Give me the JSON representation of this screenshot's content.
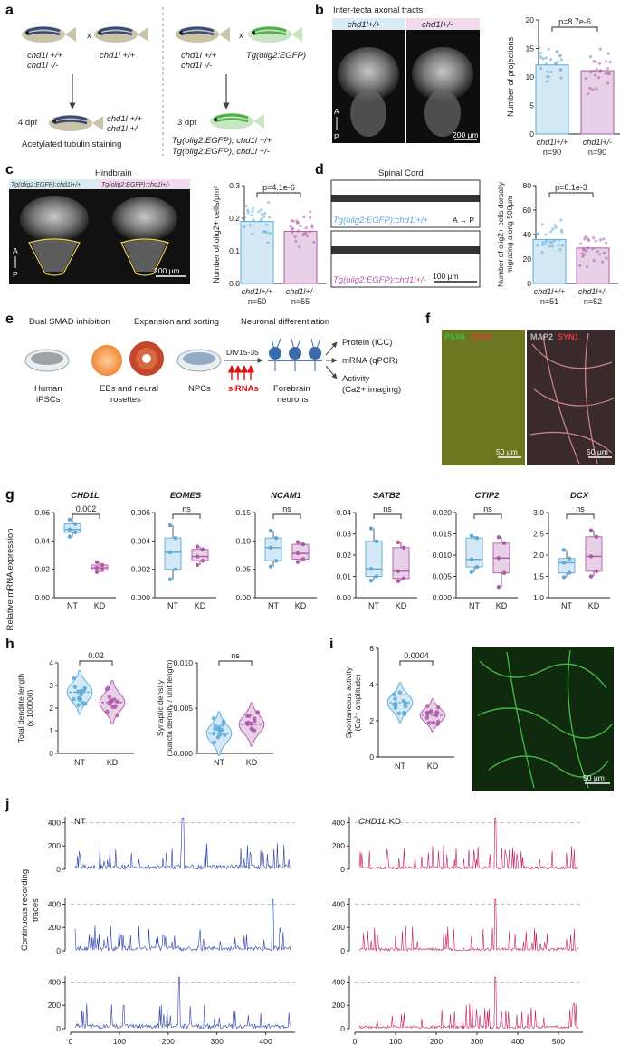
{
  "panels": {
    "a": {
      "letter": "a",
      "left": {
        "parent1_line1": "chd1l +/+",
        "parent1_line2": "chd1l -/-",
        "cross": "x",
        "parent2": "chd1l +/+",
        "stage": "4 dpf",
        "offspring_line1": "chd1l +/+",
        "offspring_line2": "chd1l +/-",
        "caption": "Acetylated tubulin staining"
      },
      "right": {
        "parent1_line1": "chd1l +/+",
        "parent1_line2": "chd1l -/-",
        "cross": "x",
        "parent2": "Tg(olig2:EGFP)",
        "stage": "3 dpf",
        "offspring_line1": "Tg(olig2:EGFP), chd1l +/+",
        "offspring_line2": "Tg(olig2:EGFP), chd1l +/-"
      }
    },
    "b": {
      "letter": "b",
      "title": "Inter-tecta axonal tracts",
      "img_label1": "chd1l+/+",
      "img_label2": "chd1l+/-",
      "orient_a": "A",
      "orient_p": "P",
      "scale": "200 μm"
    },
    "c": {
      "letter": "c",
      "title": "Hindbrain",
      "img_label1": "Tg(olig2:EGFP);chd1l+/+",
      "img_label2": "Tg(olig2:EGFP);chd1l+/-",
      "orient_a": "A",
      "orient_p": "P",
      "scale": "200 μm"
    },
    "d": {
      "letter": "d",
      "title": "Spinal Cord",
      "img_label1": "Tg(olig2:EGFP);chd1l+/+",
      "img_label2": "Tg(olig2:EGFP);chd1l+/-",
      "orient": "A → P",
      "scale": "100 μm"
    },
    "e": {
      "letter": "e",
      "step1": "Dual SMAD inhibition",
      "step2": "Expansion and sorting",
      "step3": "Neuronal differentiation",
      "lab_ipsc1": "Human",
      "lab_ipsc2": "iPSCs",
      "lab_eb1": "EBs and neural",
      "lab_eb2": "rosettes",
      "lab_npc": "NPCs",
      "div": "DIV15-35",
      "sirna": "siRNAs",
      "lab_neuron1": "Forebrain",
      "lab_neuron2": "neurons",
      "out1": "Protein (ICC)",
      "out2": "mRNA (qPCR)",
      "out3a": "Activity",
      "out3b": "(Ca2+ imaging)"
    },
    "f": {
      "letter": "f",
      "m1a": "PAX6",
      "m1b": "SOX1",
      "m2a": "MAP2",
      "m2b": "SYN1",
      "scale1": "50 μm",
      "scale2": "50 μm"
    },
    "g": {
      "letter": "g",
      "ylabel": "Relative mRNA expression"
    },
    "h": {
      "letter": "h"
    },
    "i": {
      "letter": "i",
      "scale": "50 μm"
    },
    "j": {
      "letter": "j",
      "ylabel1": "Continuous recording",
      "ylabel2": "traces"
    }
  },
  "colors": {
    "nt": "#5aa9d6",
    "nt_fill": "#d4e8f5",
    "kd": "#b05aa8",
    "kd_fill": "#e6d1e6",
    "trace_nt": "#2b3fa8",
    "trace_kd": "#c2185b",
    "green": "#2db34a"
  },
  "chart_data": [
    {
      "id": "b",
      "type": "bar",
      "categories": [
        "chd1l+/+",
        "chd1l+/-"
      ],
      "n_labels": [
        "n=90",
        "n=90"
      ],
      "values": [
        12.1,
        11.1
      ],
      "ylabel": "Number of projections",
      "ylim": [
        0,
        20
      ],
      "yticks": [
        "0",
        "5",
        "10",
        "15",
        "20"
      ],
      "pvalue": "p=8.7e-6"
    },
    {
      "id": "c",
      "type": "bar",
      "categories": [
        "chd1l+/+",
        "chd1l+/-"
      ],
      "n_labels": [
        "n=50",
        "n=55"
      ],
      "values": [
        0.19,
        0.16
      ],
      "ylabel": "Number of olig2+ cells/μm²",
      "ylim": [
        0,
        0.3
      ],
      "yticks": [
        "0.0",
        "0.1",
        "0.2",
        "0.3"
      ],
      "pvalue": "p=4.1e-6"
    },
    {
      "id": "d",
      "type": "bar",
      "categories": [
        "chd1l+/+",
        "chd1l+/-"
      ],
      "n_labels": [
        "n=51",
        "n=52"
      ],
      "values": [
        36,
        29
      ],
      "ylabel_line1": "Number of olig2+ cells dorsally",
      "ylabel_line2": "migrating along 500μm",
      "ylim": [
        0,
        80
      ],
      "yticks": [
        "0",
        "20",
        "40",
        "60",
        "80"
      ],
      "pvalue": "p=8.1e-3"
    },
    {
      "id": "g",
      "type": "box",
      "panels": [
        {
          "gene": "CHD1L",
          "ylim": [
            0,
            0.06
          ],
          "yticks": [
            "0.00",
            "0.02",
            "0.04",
            "0.06"
          ],
          "sig": "0.002",
          "categories": [
            "NT",
            "KD"
          ],
          "nt": {
            "min": 0.043,
            "q1": 0.046,
            "med": 0.048,
            "q3": 0.052,
            "max": 0.055
          },
          "kd": {
            "min": 0.018,
            "q1": 0.0195,
            "med": 0.021,
            "q3": 0.023,
            "max": 0.025
          }
        },
        {
          "gene": "EOMES",
          "ylim": [
            0,
            0.006
          ],
          "yticks": [
            "0.000",
            "0.002",
            "0.004",
            "0.006"
          ],
          "sig": "ns",
          "categories": [
            "NT",
            "KD"
          ],
          "nt": {
            "min": 0.0013,
            "q1": 0.002,
            "med": 0.0032,
            "q3": 0.0042,
            "max": 0.0051
          },
          "kd": {
            "min": 0.0023,
            "q1": 0.0026,
            "med": 0.0029,
            "q3": 0.0034,
            "max": 0.0036
          }
        },
        {
          "gene": "NCAM1",
          "ylim": [
            0,
            0.15
          ],
          "yticks": [
            "0.00",
            "0.05",
            "0.10",
            "0.15"
          ],
          "sig": "ns",
          "categories": [
            "NT",
            "KD"
          ],
          "nt": {
            "min": 0.055,
            "q1": 0.065,
            "med": 0.088,
            "q3": 0.105,
            "max": 0.118
          },
          "kd": {
            "min": 0.063,
            "q1": 0.068,
            "med": 0.078,
            "q3": 0.094,
            "max": 0.098
          }
        },
        {
          "gene": "SATB2",
          "ylim": [
            0,
            0.04
          ],
          "yticks": [
            "0.00",
            "0.01",
            "0.02",
            "0.03",
            "0.04"
          ],
          "sig": "ns",
          "categories": [
            "NT",
            "KD"
          ],
          "nt": {
            "min": 0.008,
            "q1": 0.01,
            "med": 0.0135,
            "q3": 0.0265,
            "max": 0.0325
          },
          "kd": {
            "min": 0.0078,
            "q1": 0.009,
            "med": 0.0125,
            "q3": 0.0235,
            "max": 0.026
          }
        },
        {
          "gene": "CTIP2",
          "ylim": [
            0,
            0.02
          ],
          "yticks": [
            "0.000",
            "0.005",
            "0.010",
            "0.015",
            "0.020"
          ],
          "sig": "ns",
          "categories": [
            "NT",
            "KD"
          ],
          "nt": {
            "min": 0.006,
            "q1": 0.0072,
            "med": 0.009,
            "q3": 0.014,
            "max": 0.0145
          },
          "kd": {
            "min": 0.0025,
            "q1": 0.0058,
            "med": 0.0093,
            "q3": 0.0128,
            "max": 0.0142
          }
        },
        {
          "gene": "DCX",
          "ylim": [
            1.0,
            3.0
          ],
          "yticks": [
            "1.0",
            "1.5",
            "2.0",
            "2.5",
            "3.0"
          ],
          "sig": "ns",
          "categories": [
            "NT",
            "KD"
          ],
          "nt": {
            "min": 1.48,
            "q1": 1.58,
            "med": 1.82,
            "q3": 1.92,
            "max": 2.12
          },
          "kd": {
            "min": 1.5,
            "q1": 1.62,
            "med": 1.97,
            "q3": 2.43,
            "max": 2.58
          }
        }
      ]
    },
    {
      "id": "h",
      "type": "violin",
      "panels": [
        {
          "ylabel_line1": "Total dendrite length",
          "ylabel_line2": "(x 100000)",
          "ylim": [
            0,
            4
          ],
          "yticks": [
            "0",
            "1",
            "2",
            "3",
            "4"
          ],
          "sig": "0.02",
          "categories": [
            "NT",
            "KD"
          ],
          "nt_median": 2.7,
          "kd_median": 2.25
        },
        {
          "ylabel_line1": "Synaptic density",
          "ylabel_line2": "(puncta density / unit length)",
          "ylim": [
            0,
            0.01
          ],
          "yticks": [
            "0.000",
            "0.005",
            "0.010"
          ],
          "sig": "ns",
          "categories": [
            "NT",
            "KD"
          ],
          "nt_median": 0.0022,
          "kd_median": 0.0032
        }
      ]
    },
    {
      "id": "i",
      "type": "violin",
      "ylabel_line1": "Spontaneous activity",
      "ylabel_line2": "(Ca²⁺ amplitude)",
      "ylim": [
        0,
        6
      ],
      "yticks": [
        "0",
        "2",
        "4",
        "6"
      ],
      "sig": "0.0004",
      "categories": [
        "NT",
        "KD"
      ],
      "nt_median": 3.0,
      "kd_median": 2.3
    },
    {
      "id": "j",
      "type": "line",
      "groups": [
        {
          "label": "NT",
          "label_italic": "",
          "xlim": [
            0,
            460
          ],
          "xticks": [
            "0",
            "100",
            "200",
            "300",
            "400"
          ],
          "xlabel": "Time (sec)",
          "ylim": [
            0,
            450
          ],
          "yticks": [
            "0",
            "200",
            "400"
          ],
          "reference_line": 400,
          "traces": 3
        },
        {
          "label": "KD",
          "label_italic": "CHD1L",
          "xlim": [
            0,
            560
          ],
          "xticks": [
            "0",
            "100",
            "200",
            "300",
            "400",
            "500"
          ],
          "xlabel": "Time (sec)",
          "ylim": [
            0,
            450
          ],
          "yticks": [
            "0",
            "200",
            "400"
          ],
          "reference_line": 400,
          "traces": 3
        }
      ]
    }
  ]
}
